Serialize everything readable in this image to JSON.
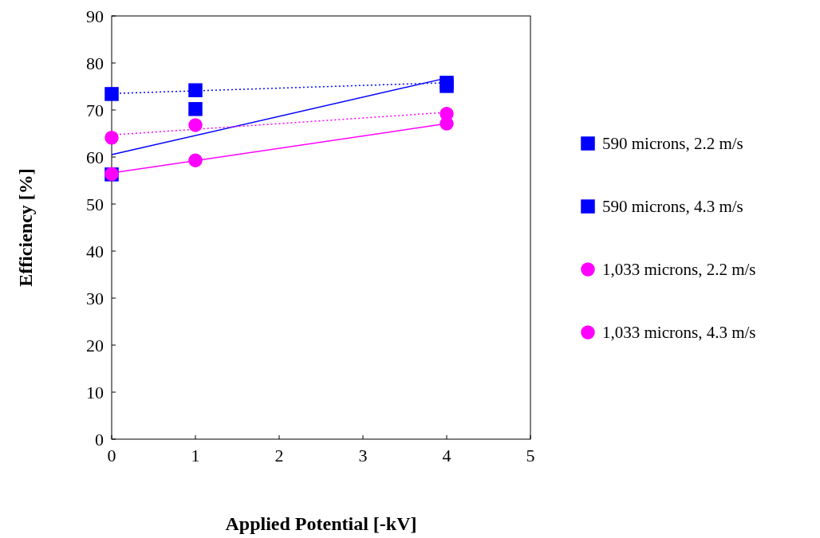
{
  "chart_data": {
    "type": "scatter",
    "xlabel": "Applied Potential [-kV]",
    "ylabel": "Efficiency [%]",
    "xlim": [
      0,
      5
    ],
    "xticks": [
      0,
      1,
      2,
      3,
      4,
      5
    ],
    "ylim": [
      0,
      90
    ],
    "yticks": [
      0,
      10,
      20,
      30,
      40,
      50,
      60,
      70,
      80,
      90
    ],
    "grid": false,
    "legend": "right",
    "series": [
      {
        "type": "line",
        "x": [
          0,
          4
        ],
        "values": [
          73.5,
          75.8
        ],
        "color": "#0000ff",
        "line_style": "dotted",
        "marker": "none"
      },
      {
        "type": "line",
        "x": [
          0,
          4
        ],
        "values": [
          60.5,
          76.8
        ],
        "color": "#0000ff",
        "line_style": "solid",
        "marker": "none"
      },
      {
        "type": "line",
        "x": [
          0,
          4
        ],
        "values": [
          64.7,
          69.5
        ],
        "color": "#ff00ff",
        "line_style": "dotted",
        "marker": "none"
      },
      {
        "type": "line",
        "x": [
          0,
          4
        ],
        "values": [
          56.6,
          67.1
        ],
        "color": "#ff00ff",
        "line_style": "solid",
        "marker": "none"
      },
      {
        "name": "590 microns, 2.2 m/s",
        "x": [
          0,
          1,
          4
        ],
        "values": [
          73.4,
          74.2,
          75.8
        ],
        "color": "#0000ff",
        "marker": "square"
      },
      {
        "name": "590 microns, 4.3 m/s",
        "x": [
          0,
          1,
          4
        ],
        "values": [
          56.3,
          70.2,
          75.1
        ],
        "color": "#0000ff",
        "marker": "square"
      },
      {
        "name": "1,033 microns, 2.2 m/s",
        "x": [
          0,
          1,
          4
        ],
        "values": [
          64.1,
          66.8,
          69.2
        ],
        "color": "#ff00ff",
        "marker": "circle"
      },
      {
        "name": "1,033 microns, 4.3 m/s",
        "x": [
          0,
          1,
          4
        ],
        "values": [
          56.4,
          59.3,
          67.1
        ],
        "color": "#ff00ff",
        "marker": "circle"
      }
    ]
  }
}
